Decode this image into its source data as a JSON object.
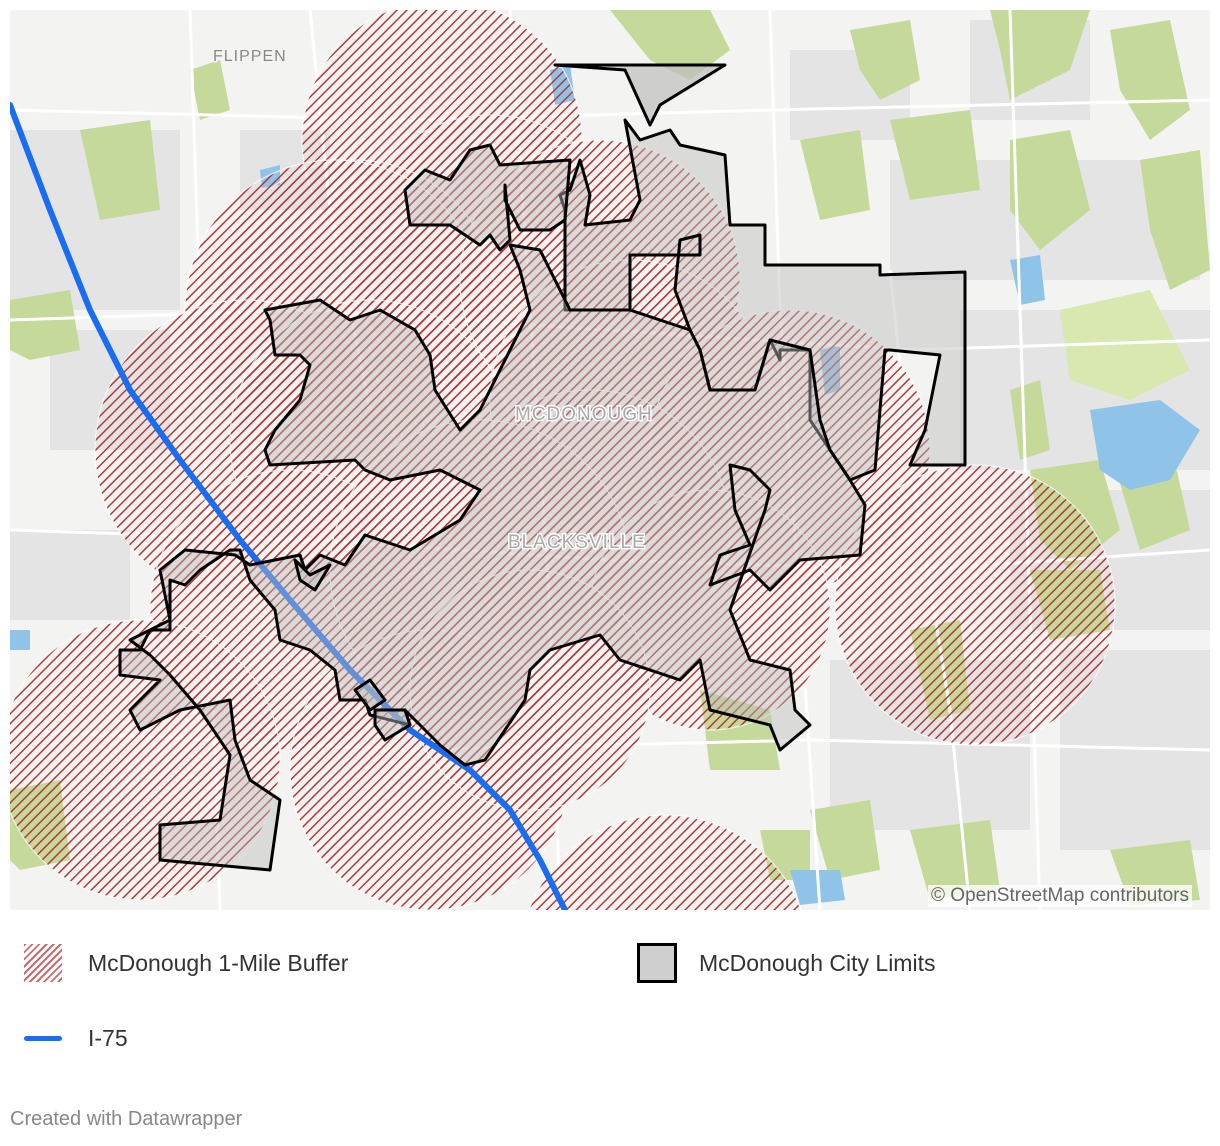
{
  "map": {
    "place_labels": [
      "FLIPPEN",
      "MCDONOUGH",
      "BLACKSVILLE"
    ],
    "attribution": "© OpenStreetMap contributors",
    "colors": {
      "background": "#f3f3f1",
      "green_areas": "#c5d99a",
      "water": "#8fc4e8",
      "built_areas": "#e3e3e3",
      "buffer": "#a01818",
      "city_limits_fill": "#bdbdbd",
      "interstate": "#1a6cf0"
    }
  },
  "legend": {
    "items": [
      {
        "label": "McDonough 1-Mile Buffer",
        "icon": "hatched-swatch"
      },
      {
        "label": "McDonough City Limits",
        "icon": "outlined-gray-swatch"
      },
      {
        "label": "I-75",
        "icon": "blue-line"
      }
    ]
  },
  "footer": {
    "credit": "Created with Datawrapper"
  }
}
